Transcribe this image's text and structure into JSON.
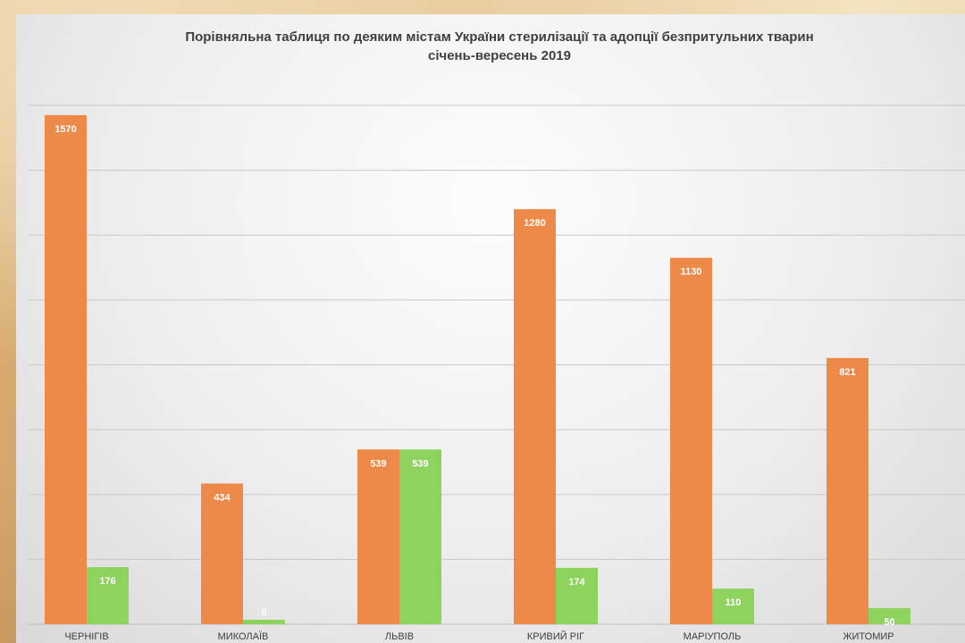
{
  "chart_data": {
    "type": "bar",
    "title": "Порівняльна таблиця по деяким містам України стерилізації та адопції безпритульних тварин",
    "subtitle": "січень-вересень 2019",
    "categories": [
      "ЧЕРНІГІВ",
      "МИКОЛАЇВ",
      "ЛЬВІВ",
      "КРИВИЙ РІГ",
      "МАРІУПОЛЬ",
      "ЖИТОМИР"
    ],
    "series": [
      {
        "values": [
          1570,
          434,
          539,
          1280,
          1130,
          821
        ],
        "color": "#ed8a4a"
      },
      {
        "values": [
          176,
          0,
          539,
          174,
          110,
          50
        ],
        "color": "#8fd35f"
      }
    ],
    "ylim": [
      0,
      1600
    ],
    "grid": true,
    "xlabel": "",
    "ylabel": ""
  }
}
